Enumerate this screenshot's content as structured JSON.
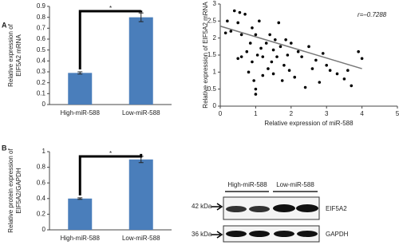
{
  "panel_labels": [
    "A",
    "B"
  ],
  "chart_data": [
    {
      "type": "bar",
      "ylabel": [
        "Relative expression of",
        "EIF5A2 mRNA"
      ],
      "categories": [
        "High-miR-588",
        "Low-miR-588"
      ],
      "values": [
        0.29,
        0.8
      ],
      "errors": [
        0.01,
        0.04
      ],
      "color": "#4a7ebb",
      "ylim": [
        0,
        0.9
      ],
      "yticks": [
        0,
        0.1,
        0.2,
        0.3,
        0.4,
        0.5,
        0.6,
        0.7,
        0.8,
        0.9
      ],
      "significance": "*"
    },
    {
      "type": "scatter",
      "xlabel": "Relative expression of miR-588",
      "ylabel": "Relative expression of EIF5A2 mRNA",
      "annotation": "r=–0.7288",
      "color": "#000000",
      "x": [
        0.15,
        0.2,
        0.3,
        0.4,
        0.5,
        0.55,
        0.6,
        0.6,
        0.5,
        0.7,
        0.75,
        0.8,
        0.85,
        0.9,
        0.9,
        0.95,
        1.0,
        1.0,
        1.0,
        1.05,
        1.1,
        1.15,
        1.2,
        1.2,
        1.3,
        1.35,
        1.4,
        1.45,
        1.5,
        1.5,
        1.55,
        1.6,
        1.65,
        1.7,
        1.75,
        1.8,
        1.85,
        1.9,
        1.95,
        2.0,
        2.1,
        2.2,
        2.3,
        2.4,
        2.5,
        2.6,
        2.7,
        2.8,
        2.9,
        3.0,
        3.1,
        3.3,
        3.5,
        3.6,
        3.7,
        3.9,
        4.0
      ],
      "values": [
        2.15,
        2.5,
        2.2,
        2.8,
        2.45,
        2.75,
        2.1,
        1.45,
        1.4,
        2.7,
        1.6,
        1.0,
        1.85,
        2.3,
        1.3,
        0.75,
        0.5,
        0.35,
        2.1,
        1.5,
        2.5,
        1.7,
        1.45,
        0.9,
        1.85,
        1.1,
        2.1,
        1.3,
        0.95,
        1.65,
        1.95,
        1.45,
        2.45,
        1.75,
        0.75,
        1.2,
        1.95,
        1.5,
        1.05,
        1.85,
        0.85,
        1.6,
        1.45,
        0.55,
        1.75,
        1.1,
        1.35,
        0.7,
        1.55,
        1.2,
        1.05,
        0.95,
        0.8,
        1.05,
        0.6,
        1.6,
        1.4
      ],
      "trendline": {
        "x": [
          0,
          4
        ],
        "y": [
          2.35,
          1.1
        ],
        "color": "#777777"
      },
      "xlim": [
        0,
        5
      ],
      "xticks": [
        0,
        1,
        2,
        3,
        4,
        5
      ],
      "ylim": [
        0,
        3
      ],
      "yticks": [
        0,
        0.5,
        1,
        1.5,
        2,
        2.5,
        3
      ]
    },
    {
      "type": "bar",
      "ylabel": [
        "Relative protein expression of",
        "EIF5A2/GAPDH"
      ],
      "categories": [
        "High-miR-588",
        "Low-miR-588"
      ],
      "values": [
        0.4,
        0.9
      ],
      "errors": [
        0.01,
        0.04
      ],
      "color": "#4a7ebb",
      "ylim": [
        0,
        1
      ],
      "yticks": [
        0,
        0.2,
        0.4,
        0.6,
        0.8,
        1
      ],
      "significance": "*"
    }
  ],
  "blot": {
    "groups": [
      "High-miR-588",
      "Low-miR-588"
    ],
    "sizes": [
      "42 kDa",
      "36 kDa"
    ],
    "proteins": [
      "EIF5A2",
      "GAPDH"
    ]
  }
}
